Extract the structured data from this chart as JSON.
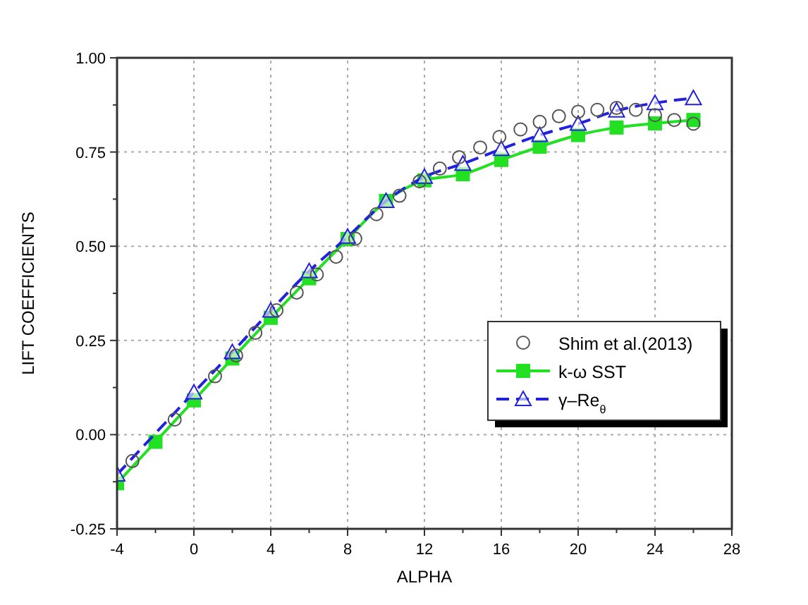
{
  "chart_data": {
    "type": "line",
    "xlabel": "ALPHA",
    "ylabel": "LIFT COEFFICIENTS",
    "xlim": [
      -4,
      28
    ],
    "xticks": [
      -4,
      0,
      4,
      8,
      12,
      16,
      20,
      24,
      28
    ],
    "ylim": [
      -0.25,
      1.0
    ],
    "yticks": [
      {
        "value": -0.25,
        "label": "-0.25"
      },
      {
        "value": 0,
        "label": "0.00"
      },
      {
        "value": 0.25,
        "label": "0.25"
      },
      {
        "value": 0.5,
        "label": "0.50"
      },
      {
        "value": 0.75,
        "label": "0.75"
      },
      {
        "value": 1.0,
        "label": "1.00"
      }
    ],
    "grid": true,
    "legend": "right",
    "series": [
      {
        "name": "Shim et al.(2013)",
        "type": "scatter",
        "marker": "circle",
        "color": "#555555",
        "x": [
          -3.2,
          -1,
          1.1,
          2.2,
          3.2,
          4.3,
          5.35,
          6.4,
          7.4,
          8.4,
          9.5,
          10.7,
          11.75,
          12.8,
          13.8,
          14.9,
          15.9,
          17,
          18,
          19,
          20,
          21,
          22,
          23,
          24,
          25,
          26
        ],
        "values": [
          -0.07,
          0.04,
          0.155,
          0.21,
          0.27,
          0.33,
          0.377,
          0.425,
          0.472,
          0.52,
          0.585,
          0.634,
          0.672,
          0.706,
          0.736,
          0.762,
          0.79,
          0.81,
          0.83,
          0.845,
          0.857,
          0.862,
          0.867,
          0.862,
          0.848,
          0.835,
          0.825
        ]
      },
      {
        "name": "k-ω SST",
        "marker": "square",
        "line_style": "solid",
        "color": "#22e022",
        "x": [
          -4,
          -2,
          0,
          2,
          4,
          6,
          8,
          10,
          12,
          14,
          16,
          18,
          20,
          22,
          24,
          26
        ],
        "values": [
          -0.129,
          -0.019,
          0.091,
          0.202,
          0.31,
          0.415,
          0.519,
          0.62,
          0.675,
          0.691,
          0.729,
          0.764,
          0.795,
          0.815,
          0.826,
          0.835
        ]
      },
      {
        "name": "γ–Re$_{θ}$",
        "marker": "triangle",
        "line_style": "dashed",
        "color": "#2222dd",
        "x": [
          -4,
          0,
          2,
          4,
          6,
          8,
          10,
          12,
          14,
          16,
          18,
          20,
          22,
          24,
          26
        ],
        "values": [
          -0.106,
          0.112,
          0.219,
          0.329,
          0.434,
          0.525,
          0.62,
          0.684,
          0.719,
          0.758,
          0.795,
          0.825,
          0.86,
          0.88,
          0.893
        ]
      }
    ]
  }
}
